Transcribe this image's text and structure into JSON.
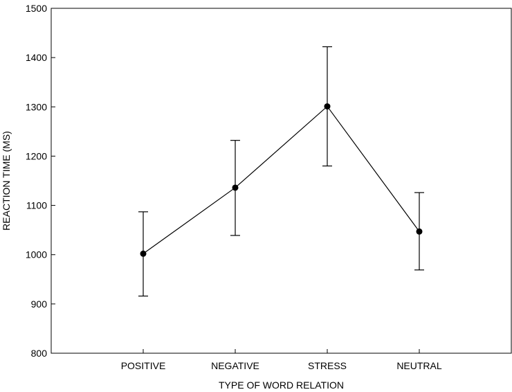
{
  "chart_data": {
    "type": "line",
    "title": "",
    "xlabel": "TYPE OF WORD RELATION",
    "ylabel": "REACTION TIME (MS)",
    "categories": [
      "POSITIVE",
      "NEGATIVE",
      "STRESS",
      "NEUTRAL"
    ],
    "series": [
      {
        "values": [
          1002,
          1136,
          1301,
          1047
        ],
        "error_low": [
          916,
          1039,
          1180,
          969
        ],
        "error_high": [
          1087,
          1232,
          1422,
          1126
        ]
      }
    ],
    "ylim": [
      800,
      1500
    ],
    "yticks": [
      800,
      900,
      1000,
      1100,
      1200,
      1300,
      1400,
      1500
    ],
    "grid": false,
    "legend": "none",
    "colors": {
      "line": "#000000",
      "marker": "#000000",
      "axis": "#000000"
    }
  }
}
